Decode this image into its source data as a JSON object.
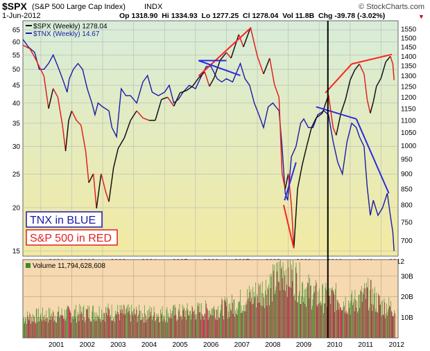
{
  "header": {
    "symbol": "$SPX",
    "name": "(S&P 500 Large Cap Index)",
    "exchange": "INDX",
    "watermark": "© StockCharts.com",
    "date": "1-Jun-2012",
    "ohlc": "Op 1318.90  Hi 1334.93  Lo 1277.25  Cl 1278.04  Vol 11.8B  Chg -39.78 (-3.02%)",
    "chg_marker": "▼"
  },
  "legend": {
    "spx": "$SPX (Weekly) 1278.04",
    "tnx": "$TNX (Weekly) 14.67"
  },
  "annotations": {
    "tnx_label": "TNX in BLUE",
    "spx_label": "S&P 500 in RED"
  },
  "volume_label": "Volume 11,794,628,608",
  "colors": {
    "spx_up": "#111111",
    "spx_down": "#e02020",
    "tnx": "#1a1aa8",
    "trend_red": "#ff2020",
    "trend_blue": "#2a2ae0",
    "vol_up": "#3a8a2a",
    "vol_down": "#b0103a",
    "price_bg_top": "#d7ecd9",
    "price_bg_bottom": "#f2eaa2",
    "vol_bg": "#f6d9b0"
  },
  "chart_data": {
    "type": "line",
    "x_ticks": [
      "2001",
      "2002",
      "2003",
      "2004",
      "2005",
      "2006",
      "2007",
      "2008",
      "2009",
      "2010",
      "2011",
      "2012"
    ],
    "left_axis": {
      "label": "TNX",
      "ticks": [
        65,
        60,
        55,
        50,
        45,
        40,
        35,
        30,
        25,
        20,
        15
      ],
      "scale": "log",
      "range": [
        14.5,
        69
      ]
    },
    "right_axis": {
      "label": "SPX",
      "ticks": [
        1550,
        1500,
        1450,
        1400,
        1350,
        1300,
        1250,
        1200,
        1150,
        1100,
        1050,
        1000,
        950,
        900,
        850,
        800,
        750,
        700
      ],
      "scale": "log",
      "range": [
        660,
        1600
      ]
    },
    "series": [
      {
        "name": "$SPX (Weekly)",
        "axis": "right",
        "points": [
          [
            2000.42,
            1460
          ],
          [
            2000.65,
            1440
          ],
          [
            2000.85,
            1380
          ],
          [
            2001.0,
            1330
          ],
          [
            2001.1,
            1300
          ],
          [
            2001.25,
            1150
          ],
          [
            2001.4,
            1240
          ],
          [
            2001.55,
            1200
          ],
          [
            2001.7,
            1080
          ],
          [
            2001.8,
            980
          ],
          [
            2001.9,
            1100
          ],
          [
            2002.0,
            1140
          ],
          [
            2002.15,
            1100
          ],
          [
            2002.3,
            1080
          ],
          [
            2002.45,
            980
          ],
          [
            2002.55,
            870
          ],
          [
            2002.7,
            900
          ],
          [
            2002.8,
            790
          ],
          [
            2002.95,
            900
          ],
          [
            2003.1,
            840
          ],
          [
            2003.2,
            810
          ],
          [
            2003.35,
            920
          ],
          [
            2003.5,
            990
          ],
          [
            2003.7,
            1030
          ],
          [
            2003.9,
            1100
          ],
          [
            2004.1,
            1140
          ],
          [
            2004.3,
            1110
          ],
          [
            2004.5,
            1100
          ],
          [
            2004.7,
            1100
          ],
          [
            2004.9,
            1190
          ],
          [
            2005.1,
            1200
          ],
          [
            2005.3,
            1160
          ],
          [
            2005.5,
            1220
          ],
          [
            2005.7,
            1230
          ],
          [
            2005.9,
            1250
          ],
          [
            2006.1,
            1290
          ],
          [
            2006.3,
            1320
          ],
          [
            2006.45,
            1250
          ],
          [
            2006.6,
            1290
          ],
          [
            2006.8,
            1380
          ],
          [
            2007.0,
            1420
          ],
          [
            2007.15,
            1390
          ],
          [
            2007.4,
            1520
          ],
          [
            2007.55,
            1450
          ],
          [
            2007.78,
            1560
          ],
          [
            2007.9,
            1470
          ],
          [
            2008.0,
            1400
          ],
          [
            2008.2,
            1310
          ],
          [
            2008.4,
            1390
          ],
          [
            2008.55,
            1260
          ],
          [
            2008.7,
            1200
          ],
          [
            2008.8,
            900
          ],
          [
            2008.9,
            850
          ],
          [
            2009.0,
            900
          ],
          [
            2009.1,
            800
          ],
          [
            2009.18,
            680
          ],
          [
            2009.3,
            850
          ],
          [
            2009.45,
            930
          ],
          [
            2009.6,
            1000
          ],
          [
            2009.75,
            1070
          ],
          [
            2009.9,
            1110
          ],
          [
            2010.1,
            1130
          ],
          [
            2010.3,
            1210
          ],
          [
            2010.45,
            1070
          ],
          [
            2010.55,
            1040
          ],
          [
            2010.7,
            1130
          ],
          [
            2010.85,
            1190
          ],
          [
            2011.0,
            1280
          ],
          [
            2011.15,
            1330
          ],
          [
            2011.3,
            1360
          ],
          [
            2011.45,
            1310
          ],
          [
            2011.55,
            1190
          ],
          [
            2011.65,
            1130
          ],
          [
            2011.75,
            1180
          ],
          [
            2011.85,
            1250
          ],
          [
            2012.0,
            1290
          ],
          [
            2012.15,
            1370
          ],
          [
            2012.3,
            1400
          ],
          [
            2012.38,
            1360
          ],
          [
            2012.42,
            1280
          ]
        ]
      },
      {
        "name": "$TNX (Weekly)",
        "axis": "left",
        "points": [
          [
            2000.42,
            61
          ],
          [
            2000.6,
            58
          ],
          [
            2000.8,
            56
          ],
          [
            2000.95,
            50
          ],
          [
            2001.1,
            50
          ],
          [
            2001.25,
            52
          ],
          [
            2001.4,
            55
          ],
          [
            2001.55,
            51
          ],
          [
            2001.7,
            47
          ],
          [
            2001.85,
            43
          ],
          [
            2001.92,
            47
          ],
          [
            2002.05,
            50
          ],
          [
            2002.2,
            52
          ],
          [
            2002.35,
            50
          ],
          [
            2002.5,
            44
          ],
          [
            2002.65,
            40
          ],
          [
            2002.75,
            37
          ],
          [
            2002.85,
            40
          ],
          [
            2003.0,
            39
          ],
          [
            2003.2,
            38
          ],
          [
            2003.3,
            34
          ],
          [
            2003.45,
            32
          ],
          [
            2003.6,
            44
          ],
          [
            2003.75,
            42
          ],
          [
            2003.9,
            42
          ],
          [
            2004.1,
            40
          ],
          [
            2004.3,
            46
          ],
          [
            2004.45,
            48
          ],
          [
            2004.6,
            43
          ],
          [
            2004.8,
            42
          ],
          [
            2005.0,
            43
          ],
          [
            2005.15,
            45
          ],
          [
            2005.3,
            40
          ],
          [
            2005.45,
            41
          ],
          [
            2005.6,
            43
          ],
          [
            2005.8,
            45
          ],
          [
            2006.0,
            44
          ],
          [
            2006.15,
            47
          ],
          [
            2006.35,
            51
          ],
          [
            2006.5,
            51
          ],
          [
            2006.7,
            47
          ],
          [
            2006.85,
            46
          ],
          [
            2007.0,
            47
          ],
          [
            2007.2,
            46
          ],
          [
            2007.45,
            52
          ],
          [
            2007.6,
            47
          ],
          [
            2007.75,
            45
          ],
          [
            2007.9,
            40
          ],
          [
            2008.05,
            37
          ],
          [
            2008.2,
            34
          ],
          [
            2008.35,
            39
          ],
          [
            2008.5,
            40
          ],
          [
            2008.7,
            38
          ],
          [
            2008.8,
            30
          ],
          [
            2008.9,
            22
          ],
          [
            2008.98,
            21
          ],
          [
            2009.1,
            28
          ],
          [
            2009.25,
            30
          ],
          [
            2009.4,
            35
          ],
          [
            2009.5,
            36
          ],
          [
            2009.65,
            34
          ],
          [
            2009.8,
            34
          ],
          [
            2009.95,
            37
          ],
          [
            2010.15,
            38
          ],
          [
            2010.3,
            37
          ],
          [
            2010.45,
            31
          ],
          [
            2010.6,
            27
          ],
          [
            2010.75,
            25
          ],
          [
            2010.9,
            31
          ],
          [
            2011.05,
            35
          ],
          [
            2011.2,
            34
          ],
          [
            2011.3,
            32
          ],
          [
            2011.45,
            30
          ],
          [
            2011.55,
            23
          ],
          [
            2011.65,
            19
          ],
          [
            2011.75,
            21
          ],
          [
            2011.9,
            19
          ],
          [
            2012.05,
            20
          ],
          [
            2012.2,
            22
          ],
          [
            2012.3,
            19
          ],
          [
            2012.38,
            17
          ],
          [
            2012.42,
            15
          ]
        ]
      }
    ],
    "trendlines": [
      {
        "color": "red",
        "from": [
          2006.1,
          1300
        ],
        "to": [
          2007.8,
          1560
        ],
        "axis": "right"
      },
      {
        "color": "red",
        "from": [
          2008.85,
          800
        ],
        "to": [
          2009.18,
          680
        ],
        "axis": "right"
      },
      {
        "color": "red",
        "from": [
          2010.2,
          1220
        ],
        "to": [
          2011.05,
          1360
        ],
        "axis": "right"
      },
      {
        "color": "red",
        "from": [
          2011.05,
          1360
        ],
        "to": [
          2012.35,
          1410
        ],
        "axis": "right"
      },
      {
        "color": "blue",
        "from": [
          2006.1,
          53
        ],
        "to": [
          2007.0,
          53
        ],
        "axis": "left"
      },
      {
        "color": "blue",
        "from": [
          2006.1,
          53
        ],
        "to": [
          2007.45,
          48
        ],
        "axis": "left"
      },
      {
        "color": "blue",
        "from": [
          2008.88,
          21
        ],
        "to": [
          2009.25,
          27
        ],
        "axis": "left"
      },
      {
        "color": "blue",
        "from": [
          2009.9,
          39
        ],
        "to": [
          2011.2,
          36
        ],
        "axis": "left"
      },
      {
        "color": "blue",
        "from": [
          2011.2,
          36
        ],
        "to": [
          2012.25,
          22
        ],
        "axis": "left"
      }
    ],
    "vertical_marker_year": 2010.28,
    "volume": {
      "ticks": [
        "30B",
        "20B",
        "10B"
      ],
      "range": [
        0,
        38
      ],
      "profile": [
        [
          2000.42,
          10
        ],
        [
          2001.0,
          11
        ],
        [
          2002.0,
          12
        ],
        [
          2003.0,
          13
        ],
        [
          2004.0,
          12
        ],
        [
          2005.0,
          12
        ],
        [
          2006.0,
          13
        ],
        [
          2007.0,
          15
        ],
        [
          2007.6,
          19
        ],
        [
          2008.0,
          22
        ],
        [
          2008.6,
          28
        ],
        [
          2008.85,
          35
        ],
        [
          2009.0,
          32
        ],
        [
          2009.2,
          30
        ],
        [
          2009.5,
          25
        ],
        [
          2010.0,
          20
        ],
        [
          2010.5,
          20
        ],
        [
          2011.0,
          17
        ],
        [
          2011.6,
          22
        ],
        [
          2012.0,
          16
        ],
        [
          2012.42,
          15
        ]
      ]
    }
  }
}
